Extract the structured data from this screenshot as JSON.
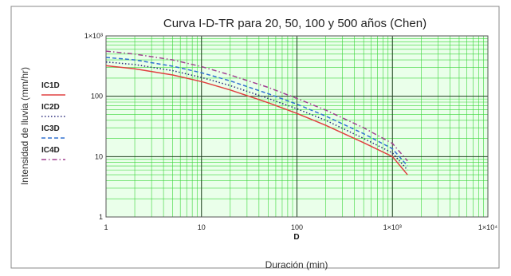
{
  "chart_data": {
    "type": "line",
    "title": "Curva I-D-TR para 20, 50, 100 y 500 años (Chen)",
    "xlabel": "Duración (min)",
    "x_variable": "D",
    "ylabel": "Intensidad de lluvia (mm/hr)",
    "x_scale": "log",
    "y_scale": "log",
    "xlim": [
      1,
      10000
    ],
    "ylim": [
      1,
      1000
    ],
    "grid": true,
    "x_tick_labels": [
      "1",
      "10",
      "100",
      "1×10³",
      "1×10⁴"
    ],
    "y_tick_labels": [
      "1",
      "10",
      "100",
      "1×10³"
    ],
    "legend_position": "left",
    "x": [
      1,
      2,
      5,
      10,
      20,
      50,
      100,
      200,
      500,
      1000,
      1440
    ],
    "series": [
      {
        "name": "IC1D",
        "color": "#e04040",
        "dash": "solid",
        "values": [
          320,
          285,
          225,
          175,
          127,
          78,
          52,
          33,
          17,
          10,
          5
        ]
      },
      {
        "name": "IC2D",
        "color": "#2a2a7a",
        "dash": "dotted",
        "values": [
          370,
          335,
          265,
          205,
          150,
          92,
          62,
          40,
          20,
          11.5,
          6
        ]
      },
      {
        "name": "IC3D",
        "color": "#3070d0",
        "dash": "dashed",
        "values": [
          440,
          400,
          315,
          245,
          180,
          110,
          74,
          47,
          24,
          13.5,
          7
        ]
      },
      {
        "name": "IC4D",
        "color": "#a04090",
        "dash": "dashdot",
        "values": [
          560,
          500,
          400,
          310,
          225,
          140,
          92,
          59,
          30,
          16.5,
          8.5
        ]
      }
    ]
  }
}
